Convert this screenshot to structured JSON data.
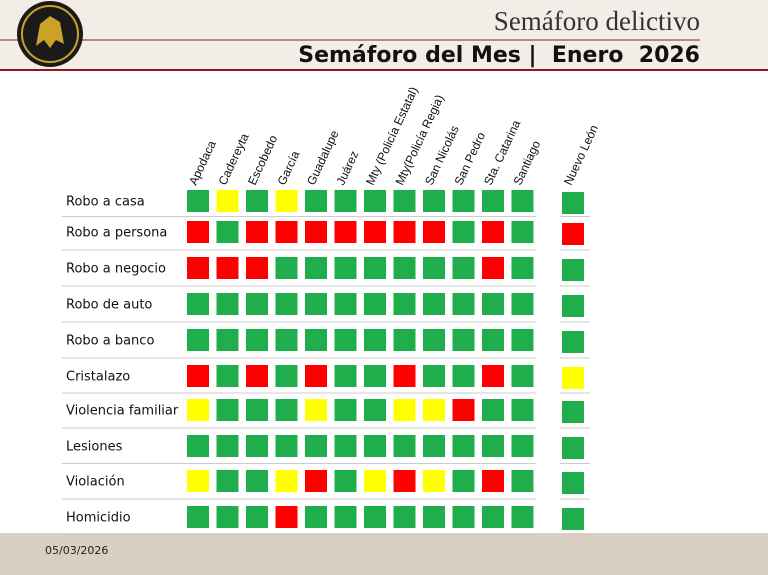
{
  "header": {
    "title": "Semáforo delictivo",
    "subtitle": "Semáforo del Mes |  Enero  2026"
  },
  "table": {
    "columns": [
      "Apodaca",
      "Cadereyta",
      "Escobedo",
      "García",
      "Guadalupe",
      "Juárez",
      "Mty (Policía Estatal)",
      "Mty(Policía Regia)",
      "San Nicolás",
      "San Pedro",
      "Sta. Catarina",
      "Santiago"
    ],
    "total_column": "Nuevo León",
    "colors": {
      "G": "#1fae4b",
      "Y": "#ffff00",
      "R": "#ff0000"
    },
    "rows": [
      {
        "label": "Robo a casa",
        "cells": [
          "G",
          "Y",
          "G",
          "Y",
          "G",
          "G",
          "G",
          "G",
          "G",
          "G",
          "G",
          "G"
        ],
        "total": "G"
      },
      {
        "label": "Robo a persona",
        "cells": [
          "R",
          "G",
          "R",
          "R",
          "R",
          "R",
          "R",
          "R",
          "R",
          "G",
          "R",
          "G"
        ],
        "total": "R"
      },
      {
        "label": "Robo a negocio",
        "cells": [
          "R",
          "R",
          "R",
          "G",
          "G",
          "G",
          "G",
          "G",
          "G",
          "G",
          "R",
          "G"
        ],
        "total": "G"
      },
      {
        "label": "Robo de auto",
        "cells": [
          "G",
          "G",
          "G",
          "G",
          "G",
          "G",
          "G",
          "G",
          "G",
          "G",
          "G",
          "G"
        ],
        "total": "G"
      },
      {
        "label": "Robo a banco",
        "cells": [
          "G",
          "G",
          "G",
          "G",
          "G",
          "G",
          "G",
          "G",
          "G",
          "G",
          "G",
          "G"
        ],
        "total": "G"
      },
      {
        "label": "Cristalazo",
        "cells": [
          "R",
          "G",
          "R",
          "G",
          "R",
          "G",
          "G",
          "R",
          "G",
          "G",
          "R",
          "G"
        ],
        "total": "Y"
      },
      {
        "label": "Violencia familiar",
        "cells": [
          "Y",
          "G",
          "G",
          "G",
          "Y",
          "G",
          "G",
          "Y",
          "Y",
          "R",
          "G",
          "G"
        ],
        "total": "G"
      },
      {
        "label": "Lesiones",
        "cells": [
          "G",
          "G",
          "G",
          "G",
          "G",
          "G",
          "G",
          "G",
          "G",
          "G",
          "G",
          "G"
        ],
        "total": "G"
      },
      {
        "label": "Violación",
        "cells": [
          "Y",
          "G",
          "G",
          "Y",
          "R",
          "G",
          "Y",
          "R",
          "Y",
          "G",
          "R",
          "G"
        ],
        "total": "G"
      },
      {
        "label": "Homicidio",
        "cells": [
          "G",
          "G",
          "G",
          "R",
          "G",
          "G",
          "G",
          "G",
          "G",
          "G",
          "G",
          "G"
        ],
        "total": "G"
      }
    ]
  },
  "footer": {
    "date": "05/03/2026"
  }
}
